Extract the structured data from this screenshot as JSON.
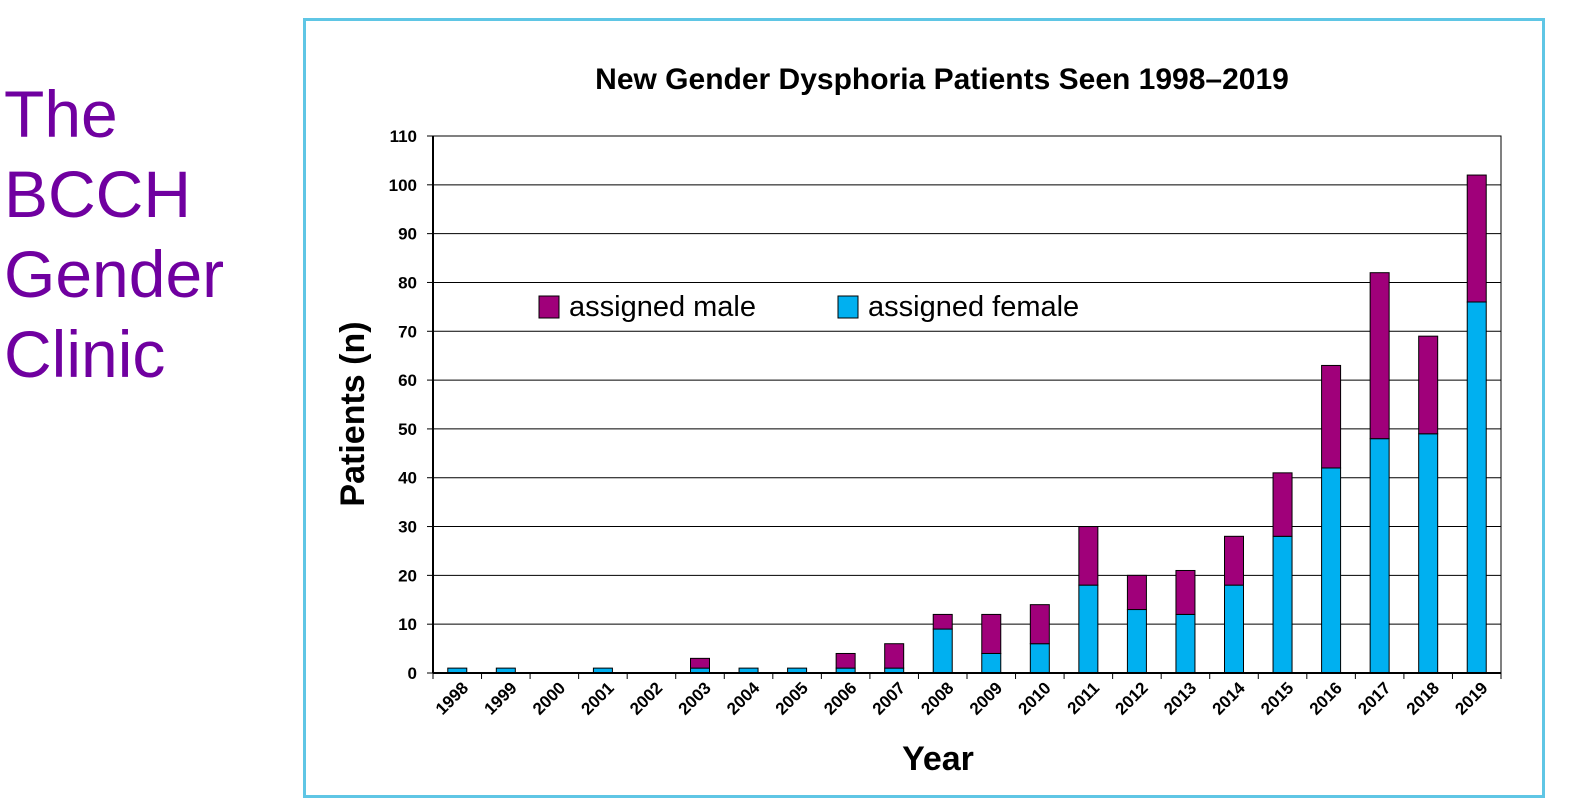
{
  "slide": {
    "title_lines": [
      "The BCCH",
      "Gender",
      "Clinic"
    ]
  },
  "chart_data": {
    "type": "bar",
    "stacked": true,
    "title": "New Gender Dysphoria Patients Seen 1998–2019",
    "xlabel": "Year",
    "ylabel": "Patients (n)",
    "ylim": [
      0,
      110
    ],
    "yticks": [
      0,
      10,
      20,
      30,
      40,
      50,
      60,
      70,
      80,
      90,
      100,
      110
    ],
    "grid": true,
    "legend_position": "top-left",
    "categories": [
      "1998",
      "1999",
      "2000",
      "2001",
      "2002",
      "2003",
      "2004",
      "2005",
      "2006",
      "2007",
      "2008",
      "2009",
      "2010",
      "2011",
      "2012",
      "2013",
      "2014",
      "2015",
      "2016",
      "2017",
      "2018",
      "2019"
    ],
    "series": [
      {
        "name": "assigned female",
        "color": "#00b0f0",
        "values": [
          1,
          1,
          0,
          1,
          0,
          1,
          1,
          1,
          1,
          1,
          9,
          4,
          6,
          18,
          13,
          12,
          18,
          28,
          42,
          48,
          49,
          76
        ]
      },
      {
        "name": "assigned male",
        "color": "#a0007a",
        "values": [
          0,
          0,
          0,
          0,
          0,
          2,
          0,
          0,
          3,
          5,
          3,
          8,
          8,
          12,
          7,
          9,
          10,
          13,
          21,
          34,
          20,
          26
        ]
      }
    ],
    "legend_order": [
      "assigned male",
      "assigned female"
    ]
  }
}
